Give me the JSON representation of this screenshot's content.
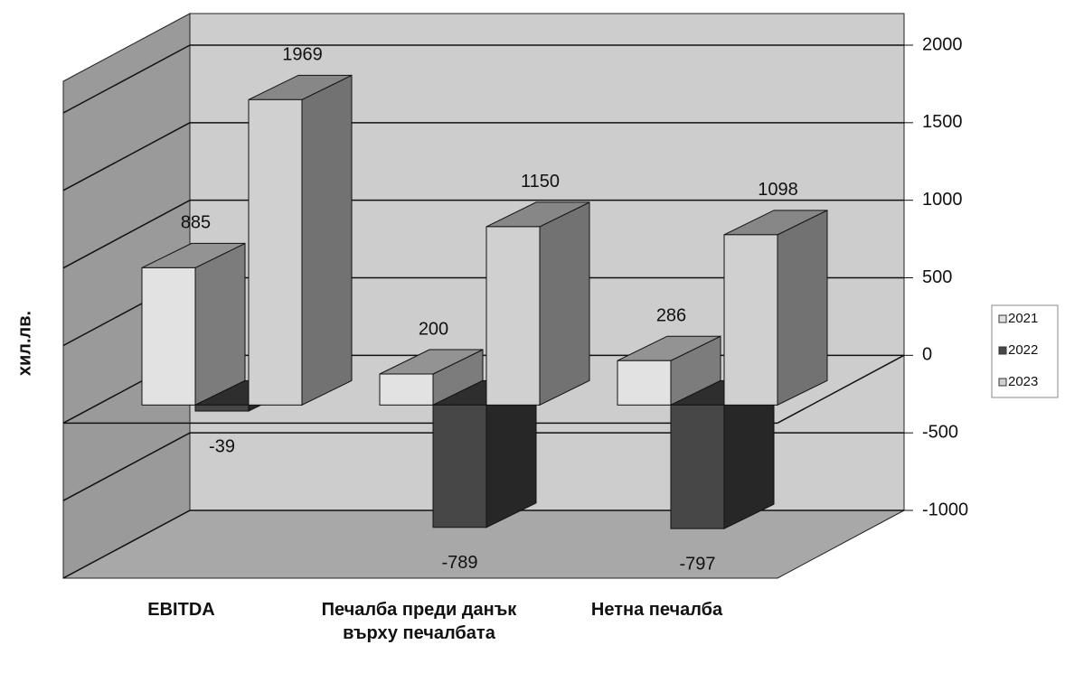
{
  "chart_data": {
    "type": "bar3d",
    "y_label": "хил.лв.",
    "categories": [
      "EBITDA",
      "Печалба преди данък върху печалбата",
      "Нетна печалба"
    ],
    "series": [
      {
        "name": "2021",
        "color": "#e2e2e2",
        "values": [
          885,
          200,
          286
        ]
      },
      {
        "name": "2022",
        "color": "#474747",
        "values": [
          -39,
          -789,
          -797
        ]
      },
      {
        "name": "2023",
        "color": "#d0d0d0",
        "values": [
          1969,
          1150,
          1098
        ]
      }
    ],
    "ylim": [
      -1000,
      2000
    ],
    "yticks": [
      -1000,
      -500,
      0,
      500,
      1000,
      1500,
      2000
    ],
    "grid": true,
    "legend": "right"
  }
}
